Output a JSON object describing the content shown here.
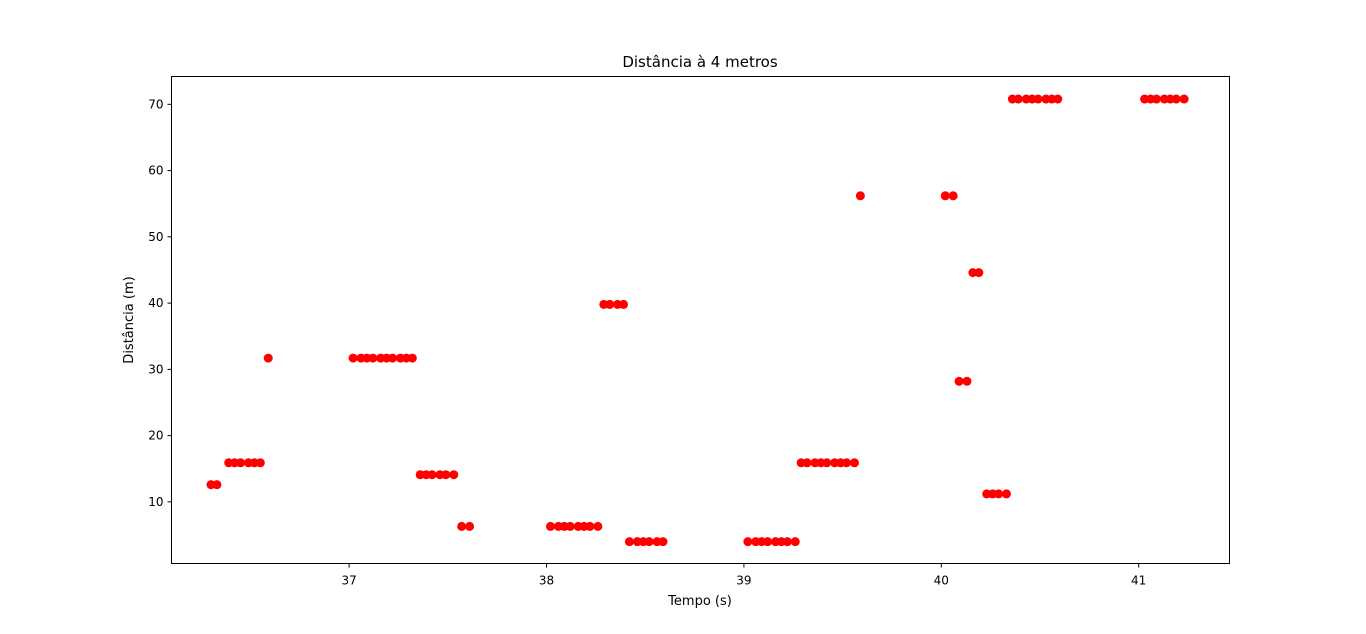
{
  "chart_data": {
    "type": "scatter",
    "title": "Distância à 4 metros",
    "xlabel": "Tempo (s)",
    "ylabel": "Distância (m)",
    "xlim": [
      36.1,
      41.46
    ],
    "ylim": [
      0.7,
      74.2
    ],
    "xticks": [
      37,
      38,
      39,
      40,
      41
    ],
    "yticks": [
      10,
      20,
      30,
      40,
      50,
      60,
      70
    ],
    "xtick_labels": [
      "37",
      "38",
      "39",
      "40",
      "41"
    ],
    "ytick_labels": [
      "10",
      "20",
      "30",
      "40",
      "50",
      "60",
      "70"
    ],
    "grid": false,
    "color": "#ff0000",
    "points": [
      {
        "x": 36.3,
        "y": 12.6
      },
      {
        "x": 36.33,
        "y": 12.6
      },
      {
        "x": 36.39,
        "y": 15.9
      },
      {
        "x": 36.42,
        "y": 15.9
      },
      {
        "x": 36.45,
        "y": 15.9
      },
      {
        "x": 36.49,
        "y": 15.9
      },
      {
        "x": 36.52,
        "y": 15.9
      },
      {
        "x": 36.55,
        "y": 15.9
      },
      {
        "x": 36.59,
        "y": 31.7
      },
      {
        "x": 37.02,
        "y": 31.7
      },
      {
        "x": 37.06,
        "y": 31.7
      },
      {
        "x": 37.09,
        "y": 31.7
      },
      {
        "x": 37.12,
        "y": 31.7
      },
      {
        "x": 37.16,
        "y": 31.7
      },
      {
        "x": 37.19,
        "y": 31.7
      },
      {
        "x": 37.22,
        "y": 31.7
      },
      {
        "x": 37.26,
        "y": 31.7
      },
      {
        "x": 37.29,
        "y": 31.7
      },
      {
        "x": 37.32,
        "y": 31.7
      },
      {
        "x": 37.36,
        "y": 14.1
      },
      {
        "x": 37.39,
        "y": 14.1
      },
      {
        "x": 37.42,
        "y": 14.1
      },
      {
        "x": 37.46,
        "y": 14.1
      },
      {
        "x": 37.49,
        "y": 14.1
      },
      {
        "x": 37.53,
        "y": 14.1
      },
      {
        "x": 37.57,
        "y": 6.3
      },
      {
        "x": 37.61,
        "y": 6.3
      },
      {
        "x": 38.02,
        "y": 6.3
      },
      {
        "x": 38.06,
        "y": 6.3
      },
      {
        "x": 38.09,
        "y": 6.3
      },
      {
        "x": 38.12,
        "y": 6.3
      },
      {
        "x": 38.16,
        "y": 6.3
      },
      {
        "x": 38.19,
        "y": 6.3
      },
      {
        "x": 38.22,
        "y": 6.3
      },
      {
        "x": 38.26,
        "y": 6.3
      },
      {
        "x": 38.29,
        "y": 39.8
      },
      {
        "x": 38.32,
        "y": 39.8
      },
      {
        "x": 38.36,
        "y": 39.8
      },
      {
        "x": 38.39,
        "y": 39.8
      },
      {
        "x": 38.42,
        "y": 4.0
      },
      {
        "x": 38.46,
        "y": 4.0
      },
      {
        "x": 38.49,
        "y": 4.0
      },
      {
        "x": 38.52,
        "y": 4.0
      },
      {
        "x": 38.56,
        "y": 4.0
      },
      {
        "x": 38.59,
        "y": 4.0
      },
      {
        "x": 39.02,
        "y": 4.0
      },
      {
        "x": 39.06,
        "y": 4.0
      },
      {
        "x": 39.09,
        "y": 4.0
      },
      {
        "x": 39.12,
        "y": 4.0
      },
      {
        "x": 39.16,
        "y": 4.0
      },
      {
        "x": 39.19,
        "y": 4.0
      },
      {
        "x": 39.22,
        "y": 4.0
      },
      {
        "x": 39.26,
        "y": 4.0
      },
      {
        "x": 39.29,
        "y": 15.9
      },
      {
        "x": 39.32,
        "y": 15.9
      },
      {
        "x": 39.36,
        "y": 15.9
      },
      {
        "x": 39.39,
        "y": 15.9
      },
      {
        "x": 39.42,
        "y": 15.9
      },
      {
        "x": 39.46,
        "y": 15.9
      },
      {
        "x": 39.49,
        "y": 15.9
      },
      {
        "x": 39.52,
        "y": 15.9
      },
      {
        "x": 39.56,
        "y": 15.9
      },
      {
        "x": 39.59,
        "y": 56.2
      },
      {
        "x": 40.02,
        "y": 56.2
      },
      {
        "x": 40.06,
        "y": 56.2
      },
      {
        "x": 40.09,
        "y": 28.2
      },
      {
        "x": 40.13,
        "y": 28.2
      },
      {
        "x": 40.16,
        "y": 44.6
      },
      {
        "x": 40.19,
        "y": 44.6
      },
      {
        "x": 40.23,
        "y": 11.2
      },
      {
        "x": 40.26,
        "y": 11.2
      },
      {
        "x": 40.29,
        "y": 11.2
      },
      {
        "x": 40.33,
        "y": 11.2
      },
      {
        "x": 40.36,
        "y": 70.8
      },
      {
        "x": 40.39,
        "y": 70.8
      },
      {
        "x": 40.43,
        "y": 70.8
      },
      {
        "x": 40.46,
        "y": 70.8
      },
      {
        "x": 40.49,
        "y": 70.8
      },
      {
        "x": 40.53,
        "y": 70.8
      },
      {
        "x": 40.56,
        "y": 70.8
      },
      {
        "x": 40.59,
        "y": 70.8
      },
      {
        "x": 41.03,
        "y": 70.8
      },
      {
        "x": 41.06,
        "y": 70.8
      },
      {
        "x": 41.09,
        "y": 70.8
      },
      {
        "x": 41.13,
        "y": 70.8
      },
      {
        "x": 41.16,
        "y": 70.8
      },
      {
        "x": 41.19,
        "y": 70.8
      },
      {
        "x": 41.23,
        "y": 70.8
      }
    ]
  }
}
